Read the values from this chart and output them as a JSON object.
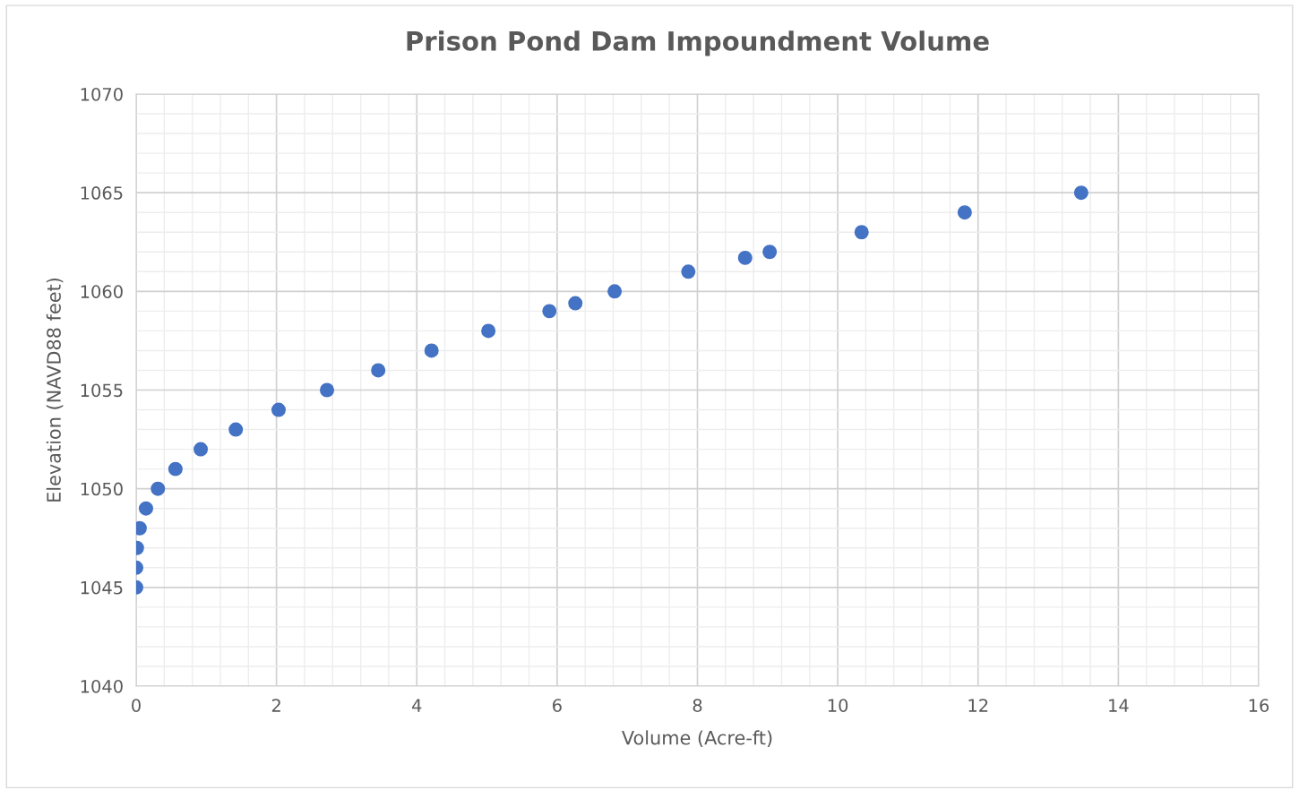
{
  "chart_data": {
    "type": "scatter",
    "title": "Prison Pond Dam Impoundment Volume",
    "xlabel": "Volume (Acre-ft)",
    "ylabel": "Elevation (NAVD88 feet)",
    "x": [
      0,
      0,
      0.01,
      0.05,
      0.14,
      0.31,
      0.56,
      0.92,
      1.42,
      2.03,
      2.72,
      3.45,
      4.21,
      5.02,
      5.89,
      6.26,
      6.82,
      7.87,
      8.68,
      9.03,
      10.34,
      11.81,
      13.47
    ],
    "series": [
      {
        "color": "#4472c4",
        "values": [
          1045,
          1046,
          1047,
          1048,
          1049,
          1050,
          1051,
          1052,
          1053,
          1054,
          1055,
          1056,
          1057,
          1058,
          1059,
          1059.4,
          1060,
          1061,
          1061.7,
          1062,
          1063,
          1064,
          1065
        ]
      }
    ],
    "xlim": [
      0,
      16
    ],
    "xticks": [
      0,
      2,
      4,
      6,
      8,
      10,
      12,
      14,
      16
    ],
    "ylim": [
      1040,
      1070
    ],
    "yticks": [
      1040,
      1045,
      1050,
      1055,
      1060,
      1065,
      1070
    ],
    "grid": true,
    "marker": "circle",
    "legend": false
  }
}
